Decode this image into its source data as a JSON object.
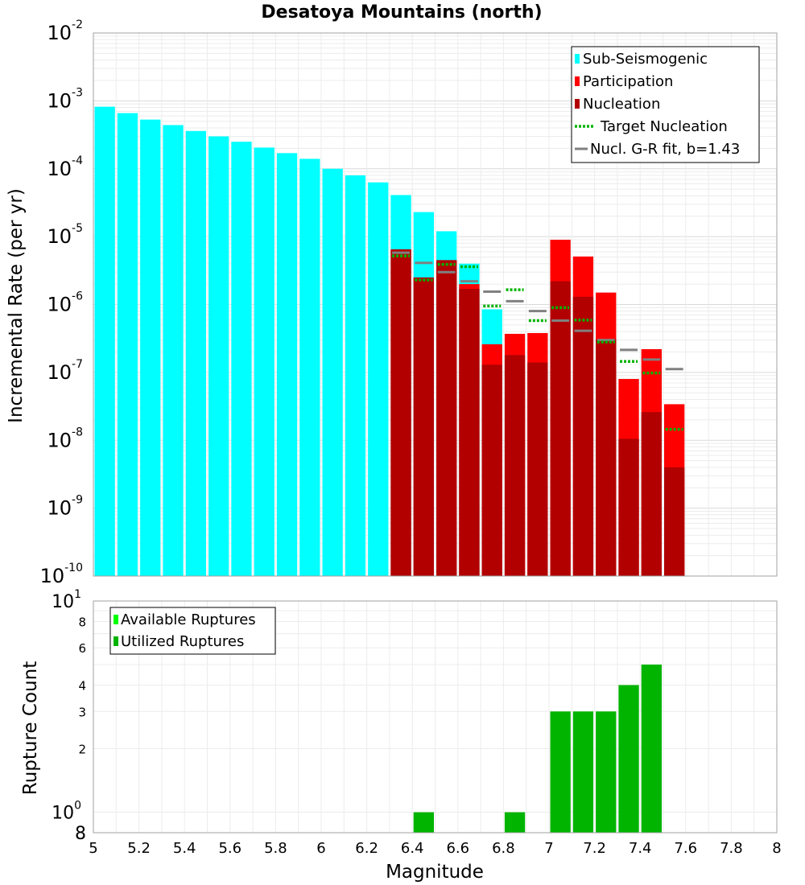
{
  "chart_data": [
    {
      "type": "bar",
      "title": "Desatoya Mountains (north)",
      "xlabel": "",
      "ylabel": "Incremental Rate (per yr)",
      "yscale": "log",
      "ylim": [
        1e-10,
        0.01
      ],
      "xlim": [
        5,
        8
      ],
      "grid": true,
      "legend_position": "top-right",
      "y_ticks": [
        {
          "base": "10",
          "exp": "-10"
        },
        {
          "base": "10",
          "exp": "-9"
        },
        {
          "base": "10",
          "exp": "-8"
        },
        {
          "base": "10",
          "exp": "-7"
        },
        {
          "base": "10",
          "exp": "-6"
        },
        {
          "base": "10",
          "exp": "-5"
        },
        {
          "base": "10",
          "exp": "-4"
        },
        {
          "base": "10",
          "exp": "-3"
        },
        {
          "base": "10",
          "exp": "-2"
        }
      ],
      "legend": [
        {
          "label": "Sub-Seismogenic",
          "color": "#00ffff",
          "style": "bar"
        },
        {
          "label": "Participation",
          "color": "#ff0000",
          "style": "bar"
        },
        {
          "label": "Nucleation",
          "color": "#b20000",
          "style": "bar"
        },
        {
          "label": "Target Nucleation",
          "color": "#00b400",
          "style": "dotted"
        },
        {
          "label": "Nucl. G-R fit, b=1.43",
          "color": "#808080",
          "style": "line"
        }
      ],
      "series": [
        {
          "name": "Sub-Seismogenic",
          "color": "#00ffff",
          "x": [
            5.05,
            5.15,
            5.25,
            5.35,
            5.45,
            5.55,
            5.65,
            5.75,
            5.85,
            5.95,
            6.05,
            6.15,
            6.25,
            6.35,
            6.45,
            6.55,
            6.65,
            6.75
          ],
          "values": [
            0.00082,
            0.00066,
            0.00053,
            0.00044,
            0.00036,
            0.0003,
            0.00025,
            0.000205,
            0.00017,
            0.00014,
            0.0001,
            8e-05,
            6.3e-05,
            4.1e-05,
            2.3e-05,
            1.2e-05,
            4e-06,
            8.5e-07
          ]
        },
        {
          "name": "Participation",
          "color": "#ff0000",
          "x": [
            6.35,
            6.45,
            6.55,
            6.65,
            6.75,
            6.85,
            6.95,
            7.05,
            7.15,
            7.25,
            7.35,
            7.45,
            7.55
          ],
          "values": [
            6.5e-06,
            2.5e-06,
            4.5e-06,
            2e-06,
            2.6e-07,
            3.7e-07,
            3.8e-07,
            9e-06,
            5.1e-06,
            1.5e-06,
            8e-08,
            2.2e-07,
            3.4e-08
          ]
        },
        {
          "name": "Nucleation",
          "color": "#b20000",
          "x": [
            6.35,
            6.45,
            6.55,
            6.65,
            6.75,
            6.85,
            6.95,
            7.05,
            7.15,
            7.25,
            7.35,
            7.45,
            7.55
          ],
          "values": [
            6.5e-06,
            2.5e-06,
            4.5e-06,
            1.7e-06,
            1.3e-07,
            1.8e-07,
            1.4e-07,
            2.2e-06,
            1.3e-06,
            3.1e-07,
            1.05e-08,
            2.6e-08,
            4e-09
          ]
        },
        {
          "name": "Target Nucleation",
          "color": "#00b400",
          "x": [
            6.35,
            6.45,
            6.55,
            6.65,
            6.75,
            6.85,
            6.95,
            7.05,
            7.15,
            7.25,
            7.35,
            7.45,
            7.55
          ],
          "values": [
            5.2e-06,
            2.3e-06,
            3.9e-06,
            3.6e-06,
            9.5e-07,
            1.65e-06,
            5.8e-07,
            9e-07,
            5.9e-07,
            2.8e-07,
            1.45e-07,
            9.8e-08,
            1.45e-08
          ]
        },
        {
          "name": "Nucl. G-R fit, b=1.43",
          "color": "#808080",
          "x": [
            6.35,
            6.45,
            6.55,
            6.65,
            6.75,
            6.85,
            6.95,
            7.05,
            7.15,
            7.25,
            7.35,
            7.45,
            7.55
          ],
          "values": [
            5.8e-06,
            4.1e-06,
            3e-06,
            2.2e-06,
            1.55e-06,
            1.12e-06,
            8e-07,
            5.8e-07,
            4.1e-07,
            3e-07,
            2.15e-07,
            1.55e-07,
            1.12e-07
          ]
        }
      ]
    },
    {
      "type": "bar",
      "xlabel": "Magnitude",
      "ylabel": "Rupture Count",
      "yscale": "log",
      "ylim": [
        0.8,
        10
      ],
      "xlim": [
        5,
        8
      ],
      "grid": true,
      "legend_position": "top-left",
      "x_tick_labels": [
        "5",
        "5.2",
        "5.4",
        "5.6",
        "5.8",
        "6",
        "6.2",
        "6.4",
        "6.6",
        "6.8",
        "7",
        "7.2",
        "7.4",
        "7.6",
        "7.8",
        "8"
      ],
      "y_minor_labels": [
        "8",
        "6",
        "4",
        "3",
        "2"
      ],
      "y_major_ticks": [
        {
          "base": "10",
          "exp": "1"
        },
        {
          "base": "10",
          "exp": "0"
        }
      ],
      "y_bottom_label": "8",
      "legend": [
        {
          "label": "Available Ruptures",
          "color": "#00ff00",
          "style": "bar"
        },
        {
          "label": "Utilized Ruptures",
          "color": "#00b400",
          "style": "bar"
        }
      ],
      "series": [
        {
          "name": "Utilized Ruptures",
          "color": "#00b400",
          "x": [
            6.45,
            6.85,
            7.05,
            7.15,
            7.25,
            7.35,
            7.45
          ],
          "values": [
            1,
            1,
            3,
            3,
            3,
            4,
            5
          ]
        }
      ]
    }
  ]
}
